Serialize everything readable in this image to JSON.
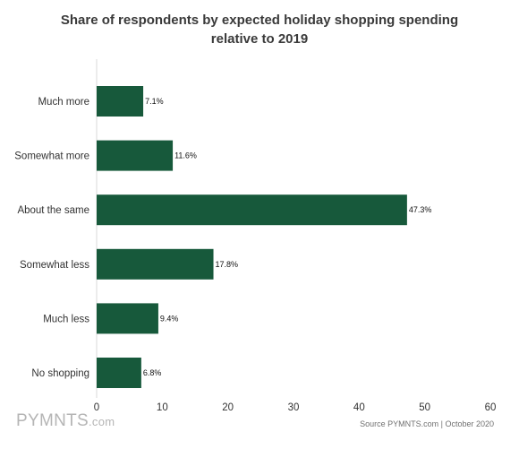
{
  "chart_data": {
    "type": "bar",
    "orientation": "horizontal",
    "title_lines": [
      "Share of respondents by expected holiday shopping spending",
      "relative to 2019"
    ],
    "categories": [
      "Much more",
      "Somewhat more",
      "About the same",
      "Somewhat less",
      "Much less",
      "No shopping"
    ],
    "values": [
      7.1,
      11.6,
      47.3,
      17.8,
      9.4,
      6.8
    ],
    "value_labels": [
      "7.1%",
      "11.6%",
      "47.3%",
      "17.8%",
      "9.4%",
      "6.8%"
    ],
    "xlim": [
      0,
      60
    ],
    "xticks": [
      0,
      10,
      20,
      30,
      40,
      50,
      60
    ],
    "grid": false,
    "bar_color": "#17593b"
  },
  "footer": {
    "logo_brand": "PYMNTS",
    "logo_suffix": ".com",
    "source": "Source PYMNTS.com | October 2020"
  }
}
